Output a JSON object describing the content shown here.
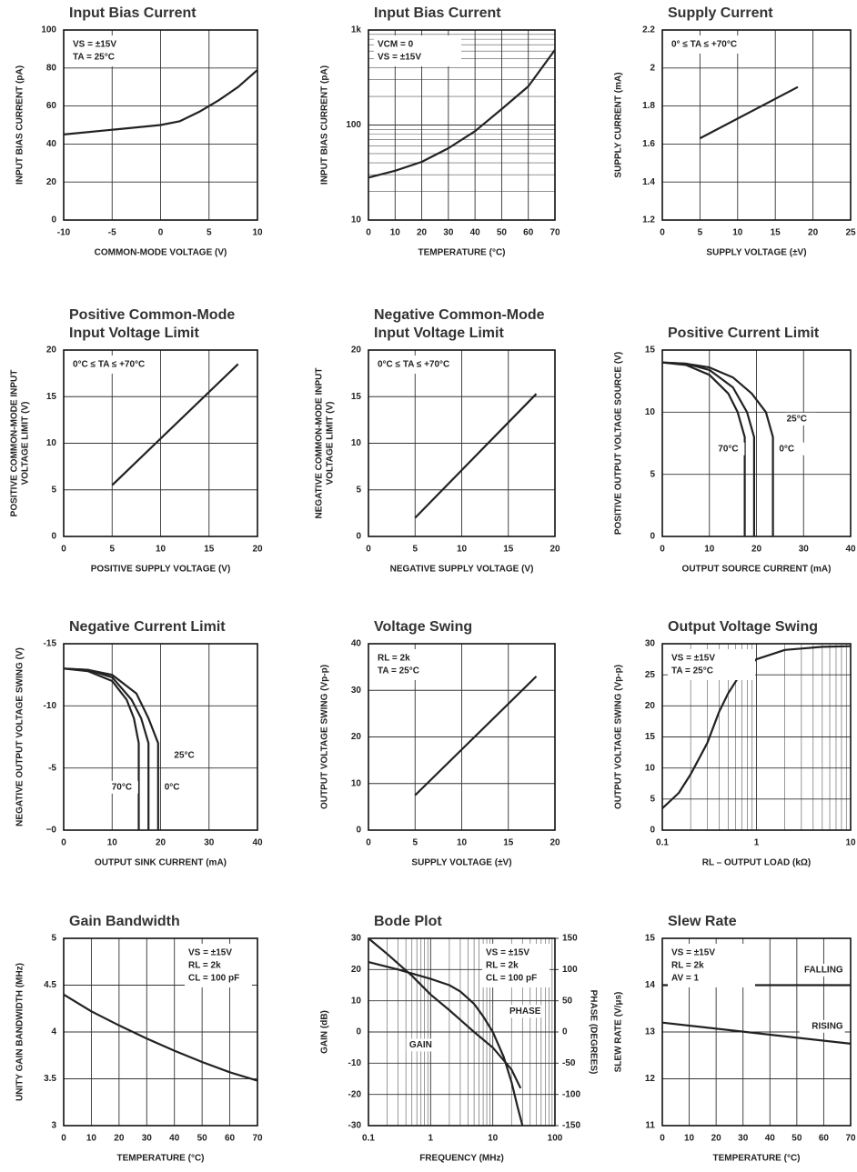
{
  "chart_data": [
    {
      "type": "line",
      "title": "Input Bias Current",
      "xlabel": "COMMON-MODE VOLTAGE (V)",
      "ylabel": "INPUT BIAS CURRENT (pA)",
      "xlim": [
        -10,
        10
      ],
      "xticks": [
        -10,
        -5,
        0,
        5,
        10
      ],
      "ylim": [
        0,
        100
      ],
      "yticks": [
        0,
        20,
        40,
        60,
        80,
        100
      ],
      "grid": true,
      "annotations": [
        "VS = ±15V",
        "TA = 25°C"
      ],
      "annotation_corner": "top-left",
      "series": [
        {
          "color": "#222222",
          "x": [
            -10,
            -5,
            0,
            2,
            4,
            6,
            8,
            10
          ],
          "values": [
            45,
            47.5,
            50,
            52,
            57,
            63,
            70,
            79
          ]
        }
      ]
    },
    {
      "type": "line",
      "title": "Input Bias Current",
      "xlabel": "TEMPERATURE (°C)",
      "ylabel": "INPUT BIAS CURRENT (pA)",
      "xlim": [
        0,
        70
      ],
      "xticks": [
        0,
        10,
        20,
        30,
        40,
        50,
        60,
        70
      ],
      "ylim": [
        10,
        1000
      ],
      "yscale": "log",
      "yticks": [
        10,
        100,
        {
          "value": 1000,
          "label": "1k"
        }
      ],
      "grid": true,
      "annotations": [
        "VCM = 0",
        "VS = ±15V"
      ],
      "annotation_corner": "top-left",
      "series": [
        {
          "color": "#222222",
          "x": [
            0,
            10,
            20,
            30,
            40,
            50,
            60,
            70
          ],
          "values": [
            28,
            33,
            41,
            57,
            86,
            147,
            255,
            617
          ]
        }
      ]
    },
    {
      "type": "line",
      "title": "Supply Current",
      "xlabel": "SUPPLY VOLTAGE (±V)",
      "ylabel": "SUPPLY CURRENT (mA)",
      "xlim": [
        0,
        25
      ],
      "xticks": [
        0,
        5,
        10,
        15,
        20,
        25
      ],
      "ylim": [
        1.2,
        2.2
      ],
      "yticks": [
        1.2,
        1.4,
        1.6,
        1.8,
        2,
        2.2
      ],
      "grid": true,
      "annotations": [
        "0° ≤ TA ≤ +70°C"
      ],
      "annotation_corner": "top-left",
      "series": [
        {
          "color": "#222222",
          "x": [
            5,
            18
          ],
          "values": [
            1.63,
            1.9
          ]
        }
      ]
    },
    {
      "type": "line",
      "title": [
        "Positive Common-Mode",
        "Input Voltage Limit"
      ],
      "xlabel": "POSITIVE SUPPLY VOLTAGE (V)",
      "ylabel": [
        "POSITIVE COMMON-MODE INPUT",
        "VOLTAGE LIMIT (V)"
      ],
      "xlim": [
        0,
        20
      ],
      "xticks": [
        0,
        5,
        10,
        15,
        20
      ],
      "ylim": [
        0,
        20
      ],
      "yticks": [
        0,
        5,
        10,
        15,
        20
      ],
      "grid": true,
      "annotations": [
        "0°C ≤ TA ≤ +70°C"
      ],
      "annotation_corner": "top-left",
      "series": [
        {
          "color": "#222222",
          "x": [
            5,
            18
          ],
          "values": [
            5.5,
            18.5
          ]
        }
      ]
    },
    {
      "type": "line",
      "title": [
        "Negative Common-Mode",
        "Input Voltage Limit"
      ],
      "xlabel": "NEGATIVE SUPPLY VOLTAGE (V)",
      "ylabel": [
        "NEGATIVE COMMON-MODE INPUT",
        "VOLTAGE LIMIT (V)"
      ],
      "xlim": [
        0,
        20
      ],
      "xticks": [
        0,
        5,
        10,
        15,
        20
      ],
      "ylim": [
        0,
        20
      ],
      "yticks": [
        0,
        5,
        10,
        15,
        20
      ],
      "grid": true,
      "annotations": [
        "0°C ≤ TA ≤ +70°C"
      ],
      "annotation_corner": "top-left",
      "series": [
        {
          "color": "#222222",
          "x": [
            5,
            18
          ],
          "values": [
            2,
            15.3
          ]
        }
      ]
    },
    {
      "type": "line",
      "title": "Positive Current Limit",
      "xlabel": "OUTPUT SOURCE CURRENT (mA)",
      "ylabel": "POSITIVE OUTPUT VOLTAGE SOURCE (V)",
      "xlim": [
        0,
        40
      ],
      "xticks": [
        0,
        10,
        20,
        30,
        40
      ],
      "ylim": [
        0,
        15
      ],
      "yticks": [
        0,
        5,
        10,
        15
      ],
      "grid": true,
      "series": [
        {
          "name": "70°C",
          "color": "#222222",
          "x": [
            0,
            5,
            10,
            14,
            16,
            17.5,
            17.5
          ],
          "values": [
            14,
            13.8,
            13,
            11.5,
            10,
            8,
            0
          ]
        },
        {
          "name": "25°C",
          "color": "#222222",
          "x": [
            0,
            5,
            10,
            15,
            18,
            19.5,
            19.5
          ],
          "values": [
            14,
            13.9,
            13.4,
            12,
            10,
            8,
            0
          ]
        },
        {
          "name": "0°C",
          "color": "#222222",
          "x": [
            0,
            5,
            10,
            15,
            19,
            22,
            23.5,
            23.5
          ],
          "values": [
            14,
            13.9,
            13.6,
            12.8,
            11.5,
            10,
            8,
            0
          ]
        }
      ]
    },
    {
      "type": "line",
      "title": "Negative Current Limit",
      "xlabel": "OUTPUT SINK CURRENT (mA)",
      "ylabel": "NEGATIVE OUTPUT VOLTAGE SWING (V)",
      "xlim": [
        0,
        40
      ],
      "xticks": [
        0,
        10,
        20,
        30,
        40
      ],
      "ylim": [
        0,
        -15
      ],
      "yticks": [
        -15,
        -10,
        -5,
        {
          "value": 0,
          "label": "−0"
        }
      ],
      "grid": true,
      "series": [
        {
          "name": "70°C",
          "color": "#222222",
          "x": [
            0,
            5,
            10,
            13,
            14.5,
            15.5,
            15.5
          ],
          "values": [
            -13,
            -12.8,
            -12,
            -10.5,
            -9,
            -7,
            0
          ]
        },
        {
          "name": "25°C",
          "color": "#222222",
          "x": [
            0,
            5,
            10,
            14,
            16,
            17.5,
            17.5
          ],
          "values": [
            -13,
            -12.9,
            -12.3,
            -10.5,
            -9,
            -7,
            0
          ]
        },
        {
          "name": "0°C",
          "color": "#222222",
          "x": [
            0,
            5,
            10,
            15,
            17.5,
            19.5,
            19.5
          ],
          "values": [
            -13,
            -12.9,
            -12.5,
            -11,
            -9,
            -7,
            0
          ]
        }
      ]
    },
    {
      "type": "line",
      "title": "Voltage Swing",
      "xlabel": "SUPPLY VOLTAGE (±V)",
      "ylabel": "OUTPUT VOLTAGE SWING (Vp-p)",
      "xlim": [
        0,
        20
      ],
      "xticks": [
        0,
        5,
        10,
        15,
        20
      ],
      "ylim": [
        0,
        40
      ],
      "yticks": [
        0,
        10,
        20,
        30,
        40
      ],
      "grid": true,
      "annotations": [
        "RL = 2k",
        "TA = 25°C"
      ],
      "annotation_corner": "top-left",
      "series": [
        {
          "color": "#222222",
          "x": [
            5,
            18
          ],
          "values": [
            7.5,
            33
          ]
        }
      ]
    },
    {
      "type": "line",
      "title": "Output Voltage Swing",
      "xlabel": "RL – OUTPUT LOAD (kΩ)",
      "ylabel": "OUTPUT VOLTAGE SWING (Vp-p)",
      "xlim": [
        0.1,
        10
      ],
      "xscale": "log",
      "xticks": [
        0.1,
        1,
        10
      ],
      "ylim": [
        0,
        30
      ],
      "yticks": [
        0,
        5,
        10,
        15,
        20,
        25,
        30
      ],
      "grid": true,
      "annotations": [
        "VS = ±15V",
        "TA = 25°C"
      ],
      "annotation_corner": "top-left",
      "series": [
        {
          "color": "#222222",
          "x": [
            0.1,
            0.15,
            0.2,
            0.3,
            0.4,
            0.5,
            0.7,
            1,
            2,
            5,
            10
          ],
          "values": [
            3.5,
            6,
            9,
            14,
            19,
            22,
            25.5,
            27.5,
            29,
            29.5,
            29.6
          ]
        }
      ]
    },
    {
      "type": "line",
      "title": "Gain Bandwidth",
      "xlabel": "TEMPERATURE (°C)",
      "ylabel": "UNITY GAIN BANDWIDTH (MHz)",
      "xlim": [
        0,
        70
      ],
      "xticks": [
        0,
        10,
        20,
        30,
        40,
        50,
        60,
        70
      ],
      "ylim": [
        3,
        5
      ],
      "yticks": [
        3,
        3.5,
        4,
        4.5,
        5
      ],
      "grid": true,
      "annotations": [
        "VS = ±15V",
        "RL = 2k",
        "CL = 100 pF"
      ],
      "annotation_corner": "top-right",
      "series": [
        {
          "color": "#222222",
          "x": [
            0,
            10,
            20,
            30,
            40,
            50,
            60,
            70
          ],
          "values": [
            4.4,
            4.22,
            4.07,
            3.93,
            3.8,
            3.68,
            3.57,
            3.48
          ]
        }
      ]
    },
    {
      "type": "line",
      "title": "Bode Plot",
      "xlabel": "FREQUENCY (MHz)",
      "ylabel": "GAIN (dB)",
      "y2label": "PHASE (DEGREES)",
      "xlim": [
        0.1,
        100
      ],
      "xscale": "log",
      "xticks": [
        0.1,
        1,
        10,
        100
      ],
      "ylim": [
        -30,
        30
      ],
      "yticks": [
        -30,
        -20,
        -10,
        0,
        10,
        20,
        30
      ],
      "y2lim": [
        -150,
        150
      ],
      "y2ticks": [
        -150,
        -100,
        -50,
        0,
        50,
        100,
        150
      ],
      "grid": true,
      "annotations": [
        "VS = ±15V",
        "RL = 2k",
        "CL = 100 pF"
      ],
      "annotation_corner": "top-right",
      "series": [
        {
          "name": "GAIN",
          "color": "#222222",
          "x": [
            0.1,
            0.2,
            0.5,
            1,
            2,
            5,
            10,
            20,
            28
          ],
          "values": [
            30,
            25,
            18,
            12,
            7,
            0,
            -5,
            -12,
            -18
          ]
        },
        {
          "name": "PHASE",
          "color": "#222222",
          "axis": "y2",
          "x": [
            0.1,
            0.3,
            1,
            2,
            3,
            5,
            7,
            10,
            15,
            20,
            25,
            30
          ],
          "values": [
            112,
            100,
            85,
            75,
            65,
            45,
            25,
            0,
            -40,
            -80,
            -120,
            -150
          ]
        }
      ]
    },
    {
      "type": "line",
      "title": "Slew Rate",
      "xlabel": "TEMPERATURE (°C)",
      "ylabel": "SLEW RATE (V/μs)",
      "xlim": [
        0,
        70
      ],
      "xticks": [
        0,
        10,
        20,
        30,
        40,
        50,
        60,
        70
      ],
      "ylim": [
        11,
        15
      ],
      "yticks": [
        11,
        12,
        13,
        14,
        15
      ],
      "grid": true,
      "annotations": [
        "VS = ±15V",
        "RL = 2k",
        "AV = 1"
      ],
      "annotation_corner": "top-left",
      "series": [
        {
          "name": "FALLING",
          "color": "#222222",
          "x": [
            0,
            70
          ],
          "values": [
            14,
            14
          ]
        },
        {
          "name": "RISING",
          "color": "#222222",
          "x": [
            0,
            70
          ],
          "values": [
            13.2,
            12.75
          ]
        }
      ]
    }
  ]
}
